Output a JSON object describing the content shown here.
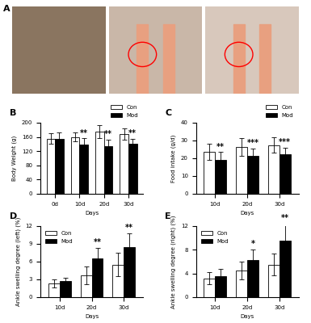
{
  "figure": {
    "photo_panel": "A"
  },
  "chart_data": [
    {
      "type": "bar",
      "title": "B",
      "x_label": "Days",
      "y_label": "Body Weight (g)",
      "categories": [
        "0d",
        "10d",
        "20d",
        "30d"
      ],
      "series": [
        {
          "name": "Con",
          "color": "#ffffff",
          "values": [
            155,
            160,
            175,
            168
          ],
          "errors": [
            15,
            12,
            18,
            15
          ]
        },
        {
          "name": "Mod",
          "color": "#000000",
          "values": [
            155,
            138,
            135,
            140
          ],
          "errors": [
            18,
            18,
            18,
            15
          ]
        }
      ],
      "annotations": [
        null,
        "**",
        "**",
        "**"
      ],
      "ylim": [
        0,
        200
      ],
      "yticks": [
        0,
        40,
        80,
        120,
        160,
        200
      ],
      "legend": "upper right"
    },
    {
      "type": "bar",
      "title": "C",
      "x_label": "Days",
      "y_label": "Food intake (g/d)",
      "categories": [
        "10d",
        "20d",
        "30d"
      ],
      "series": [
        {
          "name": "Con",
          "color": "#ffffff",
          "values": [
            23.5,
            26.5,
            27.5
          ],
          "errors": [
            4.5,
            5,
            4.5
          ]
        },
        {
          "name": "Mod",
          "color": "#000000",
          "values": [
            19,
            21.5,
            22.5
          ],
          "errors": [
            4.5,
            4,
            3.5
          ]
        }
      ],
      "annotations": [
        "**",
        "***",
        "***"
      ],
      "ylim": [
        0,
        40
      ],
      "yticks": [
        0,
        10,
        20,
        30,
        40
      ],
      "legend": "upper right"
    },
    {
      "type": "bar",
      "title": "D",
      "x_label": "Days",
      "y_label": "Ankle swelling degree (left) (%)",
      "categories": [
        "10d",
        "20d",
        "30d"
      ],
      "series": [
        {
          "name": "Con",
          "color": "#ffffff",
          "values": [
            2.3,
            3.7,
            5.5
          ],
          "errors": [
            0.7,
            1.5,
            2.0
          ]
        },
        {
          "name": "Mod",
          "color": "#000000",
          "values": [
            2.7,
            6.5,
            8.5
          ],
          "errors": [
            0.6,
            1.8,
            2.3
          ]
        }
      ],
      "annotations": [
        null,
        "**",
        "**"
      ],
      "ylim": [
        0,
        12
      ],
      "yticks": [
        0,
        3,
        6,
        9,
        12
      ],
      "legend": "upper left"
    },
    {
      "type": "bar",
      "title": "E",
      "x_label": "Days",
      "y_label": "Ankle swelling degree (right) (%)",
      "categories": [
        "10d",
        "20d",
        "30d"
      ],
      "series": [
        {
          "name": "Con",
          "color": "#ffffff",
          "values": [
            3.2,
            4.5,
            5.5
          ],
          "errors": [
            1.0,
            1.5,
            1.8
          ]
        },
        {
          "name": "Mod",
          "color": "#000000",
          "values": [
            3.6,
            6.3,
            9.5
          ],
          "errors": [
            1.2,
            1.8,
            3.0
          ]
        }
      ],
      "annotations": [
        null,
        "*",
        "**"
      ],
      "ylim": [
        0,
        12
      ],
      "yticks": [
        0,
        4,
        8,
        12
      ],
      "legend": "upper left"
    }
  ]
}
